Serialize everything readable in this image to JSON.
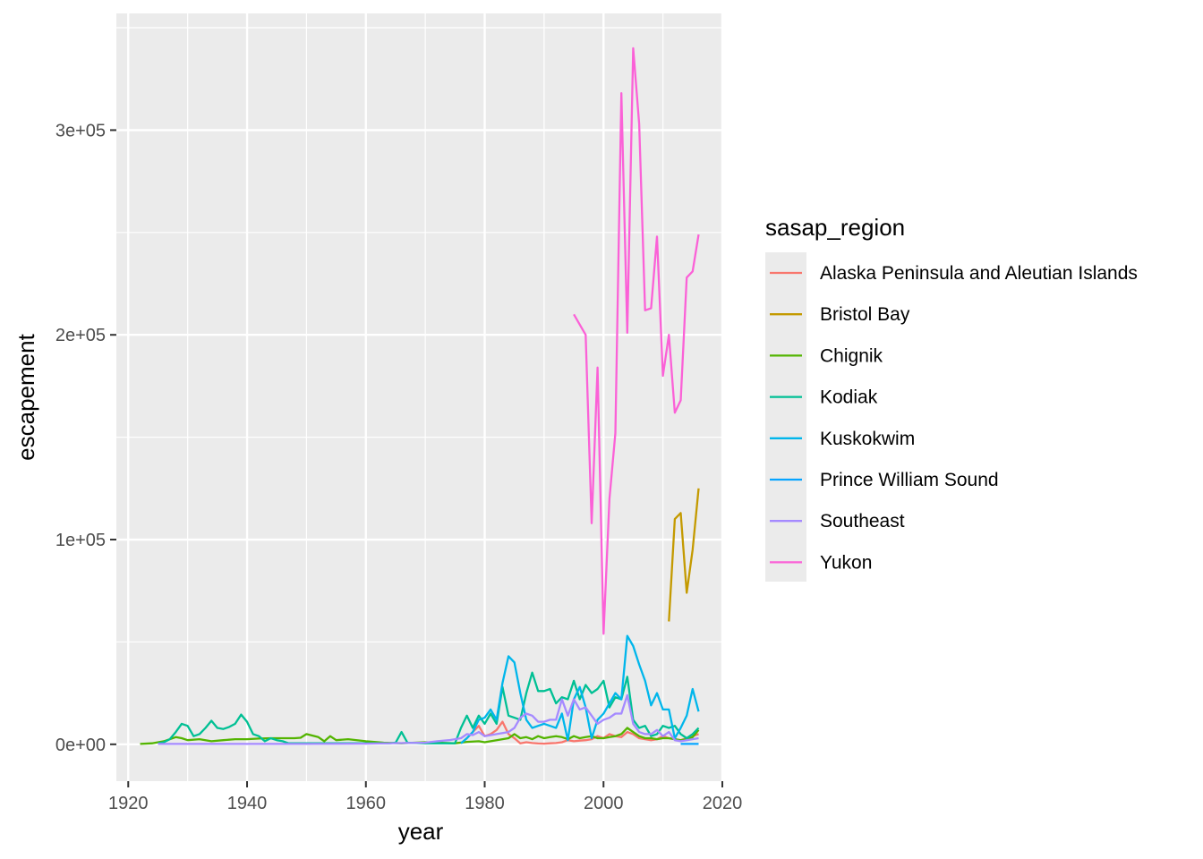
{
  "chart_data": {
    "type": "line",
    "xlabel": "year",
    "ylabel": "escapement",
    "xlim": [
      1918,
      2020
    ],
    "ylim": [
      -18000,
      357000
    ],
    "x_ticks": [
      1920,
      1940,
      1960,
      1980,
      2000,
      2020
    ],
    "x_tick_labels": [
      "1920",
      "1940",
      "1960",
      "1980",
      "2000",
      "2020"
    ],
    "y_ticks": [
      0,
      100000,
      200000,
      300000
    ],
    "y_tick_labels": [
      "0e+00",
      "1e+05",
      "2e+05",
      "3e+05"
    ],
    "grid": true,
    "panel_background": "#ebebeb",
    "legend_title": "sasap_region",
    "legend_position": "right",
    "series": [
      {
        "name": "Alaska Peninsula and Aleutian Islands",
        "color": "#F8766D",
        "points": [
          [
            1976,
            500
          ],
          [
            1977,
            3000
          ],
          [
            1978,
            6000
          ],
          [
            1979,
            9000
          ],
          [
            1980,
            4000
          ],
          [
            1981,
            5000
          ],
          [
            1982,
            7000
          ],
          [
            1983,
            11000
          ],
          [
            1984,
            5000
          ],
          [
            1985,
            3000
          ],
          [
            1986,
            500
          ],
          [
            1987,
            1000
          ],
          [
            1988,
            600
          ],
          [
            1989,
            400
          ],
          [
            1990,
            300
          ],
          [
            1991,
            500
          ],
          [
            1992,
            600
          ],
          [
            1993,
            1000
          ],
          [
            1994,
            2000
          ],
          [
            1995,
            1500
          ],
          [
            1996,
            1800
          ],
          [
            1997,
            2000
          ],
          [
            1998,
            2500
          ],
          [
            1999,
            4000
          ],
          [
            2000,
            3000
          ],
          [
            2001,
            5000
          ],
          [
            2002,
            4000
          ],
          [
            2003,
            3500
          ],
          [
            2004,
            6000
          ],
          [
            2005,
            5000
          ],
          [
            2006,
            3000
          ],
          [
            2007,
            2500
          ],
          [
            2008,
            2000
          ],
          [
            2009,
            2500
          ],
          [
            2010,
            4000
          ],
          [
            2011,
            3000
          ],
          [
            2012,
            2500
          ],
          [
            2013,
            2000
          ],
          [
            2014,
            3000
          ],
          [
            2015,
            4000
          ],
          [
            2016,
            5000
          ]
        ]
      },
      {
        "name": "Bristol Bay",
        "color": "#C49A00",
        "points": [
          [
            2011,
            60000
          ],
          [
            2012,
            110000
          ],
          [
            2013,
            113000
          ],
          [
            2014,
            74000
          ],
          [
            2015,
            95000
          ],
          [
            2016,
            125000
          ]
        ]
      },
      {
        "name": "Chignik",
        "color": "#53B400",
        "points": [
          [
            1922,
            200
          ],
          [
            1924,
            500
          ],
          [
            1926,
            1500
          ],
          [
            1928,
            3500
          ],
          [
            1929,
            3000
          ],
          [
            1930,
            2000
          ],
          [
            1932,
            2500
          ],
          [
            1934,
            1500
          ],
          [
            1936,
            2000
          ],
          [
            1938,
            2500
          ],
          [
            1940,
            2500
          ],
          [
            1942,
            2800
          ],
          [
            1944,
            3000
          ],
          [
            1946,
            3000
          ],
          [
            1948,
            3000
          ],
          [
            1949,
            3200
          ],
          [
            1950,
            5000
          ],
          [
            1952,
            3500
          ],
          [
            1953,
            1500
          ],
          [
            1954,
            4000
          ],
          [
            1955,
            2000
          ],
          [
            1957,
            2500
          ],
          [
            1960,
            1500
          ],
          [
            1963,
            800
          ],
          [
            1966,
            500
          ],
          [
            1970,
            1000
          ],
          [
            1975,
            500
          ],
          [
            1977,
            1200
          ],
          [
            1979,
            1500
          ],
          [
            1980,
            1000
          ],
          [
            1982,
            2000
          ],
          [
            1984,
            3000
          ],
          [
            1985,
            5000
          ],
          [
            1986,
            3000
          ],
          [
            1987,
            3500
          ],
          [
            1988,
            2500
          ],
          [
            1989,
            4000
          ],
          [
            1990,
            3000
          ],
          [
            1991,
            3500
          ],
          [
            1992,
            4000
          ],
          [
            1993,
            3500
          ],
          [
            1994,
            2500
          ],
          [
            1995,
            4000
          ],
          [
            1996,
            3000
          ],
          [
            1997,
            3500
          ],
          [
            1998,
            4000
          ],
          [
            1999,
            3000
          ],
          [
            2000,
            3000
          ],
          [
            2001,
            3500
          ],
          [
            2002,
            4000
          ],
          [
            2003,
            5000
          ],
          [
            2004,
            8000
          ],
          [
            2005,
            6000
          ],
          [
            2006,
            4000
          ],
          [
            2007,
            3000
          ],
          [
            2008,
            3000
          ],
          [
            2009,
            2500
          ],
          [
            2010,
            3000
          ],
          [
            2011,
            3000
          ],
          [
            2012,
            2500
          ],
          [
            2013,
            2000
          ],
          [
            2014,
            2500
          ],
          [
            2015,
            3500
          ],
          [
            2016,
            7000
          ]
        ]
      },
      {
        "name": "Kodiak",
        "color": "#00C094",
        "points": [
          [
            1925,
            500
          ],
          [
            1926,
            1000
          ],
          [
            1927,
            2500
          ],
          [
            1928,
            6000
          ],
          [
            1929,
            10000
          ],
          [
            1930,
            9000
          ],
          [
            1931,
            4000
          ],
          [
            1932,
            5000
          ],
          [
            1933,
            8000
          ],
          [
            1934,
            11500
          ],
          [
            1935,
            8000
          ],
          [
            1936,
            7500
          ],
          [
            1937,
            8500
          ],
          [
            1938,
            10000
          ],
          [
            1939,
            14500
          ],
          [
            1940,
            11000
          ],
          [
            1941,
            5000
          ],
          [
            1942,
            4000
          ],
          [
            1943,
            1500
          ],
          [
            1944,
            3000
          ],
          [
            1945,
            2000
          ],
          [
            1946,
            1500
          ],
          [
            1947,
            500
          ],
          [
            1950,
            500
          ],
          [
            1960,
            500
          ],
          [
            1964,
            500
          ],
          [
            1965,
            800
          ],
          [
            1966,
            6000
          ],
          [
            1967,
            800
          ],
          [
            1970,
            500
          ],
          [
            1975,
            500
          ],
          [
            1976,
            8000
          ],
          [
            1977,
            14000
          ],
          [
            1978,
            8000
          ],
          [
            1979,
            14000
          ],
          [
            1980,
            10000
          ],
          [
            1981,
            15000
          ],
          [
            1982,
            10000
          ],
          [
            1983,
            28000
          ],
          [
            1984,
            14000
          ],
          [
            1985,
            13000
          ],
          [
            1986,
            12000
          ],
          [
            1987,
            25000
          ],
          [
            1988,
            35000
          ],
          [
            1989,
            26000
          ],
          [
            1990,
            26000
          ],
          [
            1991,
            27000
          ],
          [
            1992,
            20000
          ],
          [
            1993,
            23000
          ],
          [
            1994,
            22000
          ],
          [
            1995,
            31000
          ],
          [
            1996,
            22000
          ],
          [
            1997,
            29000
          ],
          [
            1998,
            25000
          ],
          [
            1999,
            27000
          ],
          [
            2000,
            31000
          ],
          [
            2001,
            18000
          ],
          [
            2002,
            23000
          ],
          [
            2003,
            22000
          ],
          [
            2004,
            33000
          ],
          [
            2005,
            12000
          ],
          [
            2006,
            8000
          ],
          [
            2007,
            9000
          ],
          [
            2008,
            4000
          ],
          [
            2009,
            5000
          ],
          [
            2010,
            9000
          ],
          [
            2011,
            8000
          ],
          [
            2012,
            9000
          ],
          [
            2013,
            5000
          ],
          [
            2014,
            3000
          ],
          [
            2015,
            5000
          ],
          [
            2016,
            8000
          ]
        ]
      },
      {
        "name": "Kuskokwim",
        "color": "#00B6EB",
        "points": [
          [
            1976,
            500
          ],
          [
            1977,
            3000
          ],
          [
            1978,
            6000
          ],
          [
            1979,
            12000
          ],
          [
            1980,
            13000
          ],
          [
            1981,
            17000
          ],
          [
            1982,
            12000
          ],
          [
            1983,
            30000
          ],
          [
            1984,
            43000
          ],
          [
            1985,
            40000
          ],
          [
            1986,
            25000
          ],
          [
            1987,
            12000
          ],
          [
            1988,
            8000
          ],
          [
            1989,
            9000
          ],
          [
            1990,
            10000
          ],
          [
            1991,
            9000
          ],
          [
            1992,
            8000
          ],
          [
            1993,
            15000
          ],
          [
            1994,
            2000
          ],
          [
            1995,
            22000
          ],
          [
            1996,
            28000
          ],
          [
            1997,
            18000
          ],
          [
            1998,
            3000
          ],
          [
            1999,
            12000
          ],
          [
            2000,
            15000
          ],
          [
            2001,
            20000
          ],
          [
            2002,
            25000
          ],
          [
            2003,
            22000
          ],
          [
            2004,
            53000
          ],
          [
            2005,
            48000
          ],
          [
            2006,
            39000
          ],
          [
            2007,
            31000
          ],
          [
            2008,
            19000
          ],
          [
            2009,
            25000
          ],
          [
            2010,
            17000
          ],
          [
            2011,
            17000
          ],
          [
            2012,
            3000
          ],
          [
            2013,
            8000
          ],
          [
            2014,
            14000
          ],
          [
            2015,
            27000
          ],
          [
            2016,
            16000
          ]
        ]
      },
      {
        "name": "Prince William Sound",
        "color": "#06A4FF",
        "points": [
          [
            2013,
            200
          ],
          [
            2014,
            200
          ],
          [
            2015,
            200
          ],
          [
            2016,
            200
          ]
        ]
      },
      {
        "name": "Southeast",
        "color": "#A58AFF",
        "points": [
          [
            1925,
            200
          ],
          [
            1940,
            200
          ],
          [
            1950,
            200
          ],
          [
            1960,
            300
          ],
          [
            1970,
            800
          ],
          [
            1972,
            1500
          ],
          [
            1974,
            2000
          ],
          [
            1976,
            3000
          ],
          [
            1977,
            5000
          ],
          [
            1978,
            4500
          ],
          [
            1979,
            6000
          ],
          [
            1980,
            4000
          ],
          [
            1982,
            5000
          ],
          [
            1984,
            6000
          ],
          [
            1985,
            8000
          ],
          [
            1986,
            13000
          ],
          [
            1987,
            15000
          ],
          [
            1988,
            14000
          ],
          [
            1989,
            11000
          ],
          [
            1990,
            11000
          ],
          [
            1991,
            12000
          ],
          [
            1992,
            12000
          ],
          [
            1993,
            22000
          ],
          [
            1994,
            14000
          ],
          [
            1995,
            22000
          ],
          [
            1996,
            17000
          ],
          [
            1997,
            18000
          ],
          [
            1998,
            14000
          ],
          [
            1999,
            10000
          ],
          [
            2000,
            12000
          ],
          [
            2001,
            13000
          ],
          [
            2002,
            15000
          ],
          [
            2003,
            15000
          ],
          [
            2004,
            24000
          ],
          [
            2005,
            10000
          ],
          [
            2006,
            6000
          ],
          [
            2007,
            5000
          ],
          [
            2008,
            5000
          ],
          [
            2009,
            7000
          ],
          [
            2010,
            4000
          ],
          [
            2011,
            6000
          ],
          [
            2012,
            2000
          ],
          [
            2013,
            1500
          ],
          [
            2014,
            2000
          ],
          [
            2015,
            2500
          ],
          [
            2016,
            3000
          ]
        ]
      },
      {
        "name": "Yukon",
        "color": "#FB61D7",
        "points": [
          [
            1995,
            210000
          ],
          [
            1997,
            200000
          ],
          [
            1998,
            108000
          ],
          [
            1999,
            184000
          ],
          [
            2000,
            54000
          ],
          [
            2001,
            120000
          ],
          [
            2002,
            152000
          ],
          [
            2003,
            318000
          ],
          [
            2004,
            201000
          ],
          [
            2005,
            340000
          ],
          [
            2006,
            303000
          ],
          [
            2007,
            212000
          ],
          [
            2008,
            213000
          ],
          [
            2009,
            248000
          ],
          [
            2010,
            180000
          ],
          [
            2011,
            200000
          ],
          [
            2012,
            162000
          ],
          [
            2013,
            168000
          ],
          [
            2014,
            228000
          ],
          [
            2015,
            231000
          ],
          [
            2016,
            249000
          ]
        ]
      }
    ]
  }
}
